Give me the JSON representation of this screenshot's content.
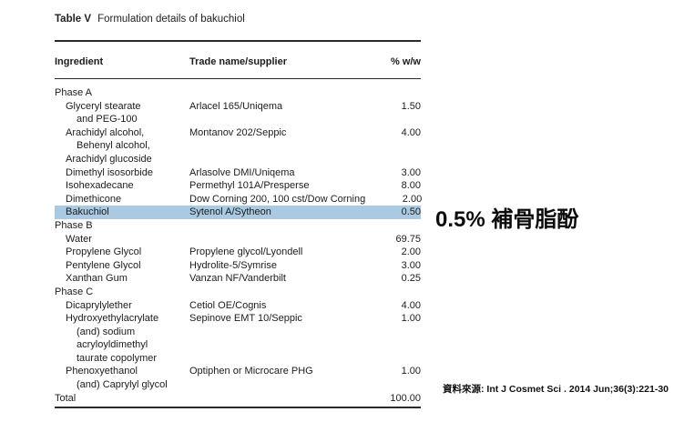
{
  "table": {
    "caption_label": "Table V",
    "caption_text": "Formulation details of bakuchiol",
    "columns": [
      "Ingredient",
      "Trade name/supplier",
      "% w/w"
    ],
    "highlight_color": "#a9cae2",
    "rows": [
      {
        "lines": [
          {
            "t": "Phase A",
            "i": 0
          }
        ],
        "trade": "",
        "pct": ""
      },
      {
        "lines": [
          {
            "t": "Glyceryl stearate",
            "i": 1
          },
          {
            "t": "and PEG-100",
            "i": 2
          }
        ],
        "trade": "Arlacel 165/Uniqema",
        "pct": "1.50"
      },
      {
        "lines": [
          {
            "t": "Arachidyl alcohol,",
            "i": 1
          },
          {
            "t": "Behenyl alcohol,",
            "i": 2
          },
          {
            "t": "Arachidyl glucoside",
            "i": 1
          }
        ],
        "trade": "Montanov 202/Seppic",
        "pct": "4.00"
      },
      {
        "lines": [
          {
            "t": "Dimethyl isosorbide",
            "i": 1
          }
        ],
        "trade": "Arlasolve DMI/Uniqema",
        "pct": "3.00"
      },
      {
        "lines": [
          {
            "t": "Isohexadecane",
            "i": 1
          }
        ],
        "trade": "Permethyl 101A/Presperse",
        "pct": "8.00"
      },
      {
        "lines": [
          {
            "t": "Dimethicone",
            "i": 1
          }
        ],
        "trade": "Dow Corning 200, 100 cst/Dow Corning",
        "pct": "2.00"
      },
      {
        "lines": [
          {
            "t": "Bakuchiol",
            "i": 1
          }
        ],
        "trade": "Sytenol A/Sytheon",
        "pct": "0.50",
        "highlight": true
      },
      {
        "lines": [
          {
            "t": "Phase B",
            "i": 0
          }
        ],
        "trade": "",
        "pct": ""
      },
      {
        "lines": [
          {
            "t": "Water",
            "i": 1
          }
        ],
        "trade": "",
        "pct": "69.75"
      },
      {
        "lines": [
          {
            "t": "Propylene Glycol",
            "i": 1
          }
        ],
        "trade": "Propylene glycol/Lyondell",
        "pct": "2.00"
      },
      {
        "lines": [
          {
            "t": "Pentylene Glycol",
            "i": 1
          }
        ],
        "trade": "Hydrolite-5/Symrise",
        "pct": "3.00"
      },
      {
        "lines": [
          {
            "t": "Xanthan Gum",
            "i": 1
          }
        ],
        "trade": "Vanzan NF/Vanderbilt",
        "pct": "0.25"
      },
      {
        "lines": [
          {
            "t": "Phase C",
            "i": 0
          }
        ],
        "trade": "",
        "pct": ""
      },
      {
        "lines": [
          {
            "t": "Dicaprylylether",
            "i": 1
          }
        ],
        "trade": "Cetiol OE/Cognis",
        "pct": "4.00"
      },
      {
        "lines": [
          {
            "t": "Hydroxyethylacrylate",
            "i": 1
          },
          {
            "t": "(and) sodium",
            "i": 2
          },
          {
            "t": "acryloyldimethyl",
            "i": 2
          },
          {
            "t": "taurate copolymer",
            "i": 2
          }
        ],
        "trade": "Sepinove EMT 10/Seppic",
        "pct": "1.00"
      },
      {
        "lines": [
          {
            "t": "Phenoxyethanol",
            "i": 1
          },
          {
            "t": "(and) Caprylyl glycol",
            "i": 2
          }
        ],
        "trade": "Optiphen or Microcare PHG",
        "pct": "1.00"
      },
      {
        "lines": [
          {
            "t": "Total",
            "i": 0
          }
        ],
        "trade": "",
        "pct": "100.00"
      }
    ]
  },
  "annotation": {
    "text": "0.5% 補骨脂酚"
  },
  "source": {
    "text": "資料來源: Int J Cosmet Sci . 2014 Jun;36(3):221-30"
  }
}
